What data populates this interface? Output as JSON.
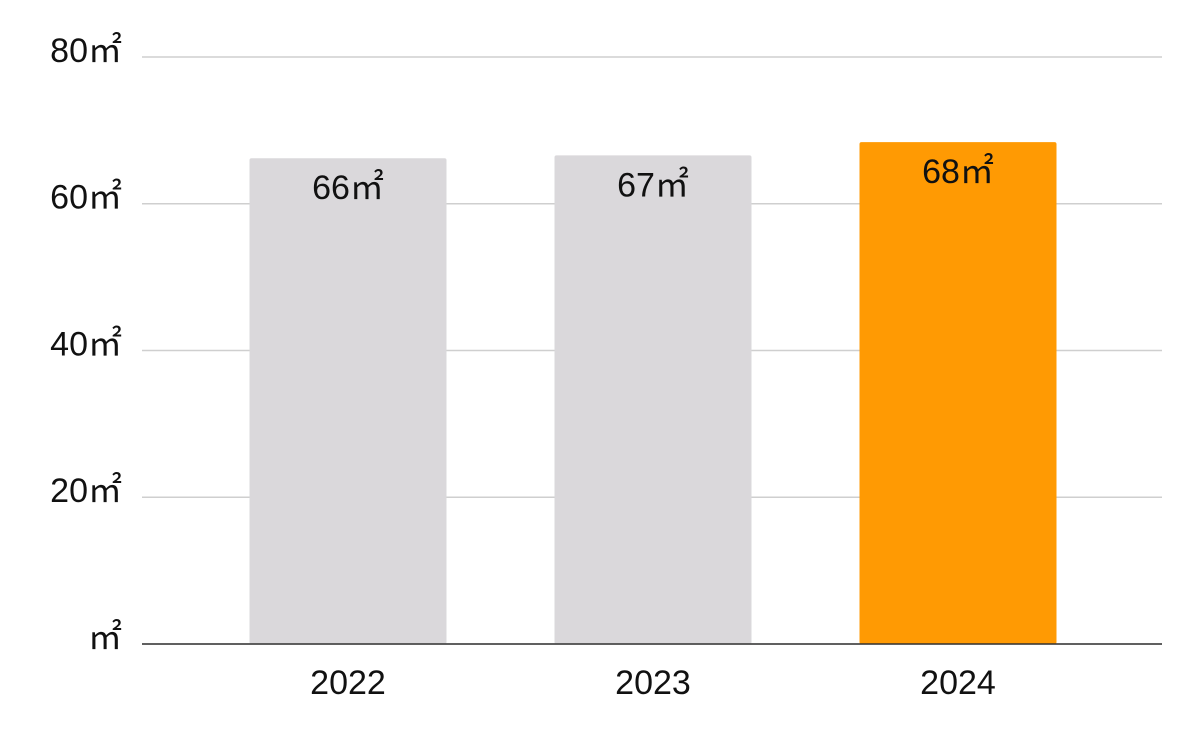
{
  "chart_data": {
    "type": "bar",
    "categories": [
      "2022",
      "2023",
      "2024"
    ],
    "values": [
      66.2,
      66.6,
      68.4
    ],
    "value_labels": [
      "66㎡",
      "67㎡",
      "68㎡"
    ],
    "colors": [
      "#dad8db",
      "#dad8db",
      "#ff9a03"
    ],
    "ylim": [
      0,
      80
    ],
    "yticks": [
      {
        "value": 0,
        "label": "㎡"
      },
      {
        "value": 20,
        "label": "20㎡"
      },
      {
        "value": 40,
        "label": "40㎡"
      },
      {
        "value": 60,
        "label": "60㎡"
      },
      {
        "value": 80,
        "label": "80㎡"
      }
    ],
    "grid": true
  }
}
